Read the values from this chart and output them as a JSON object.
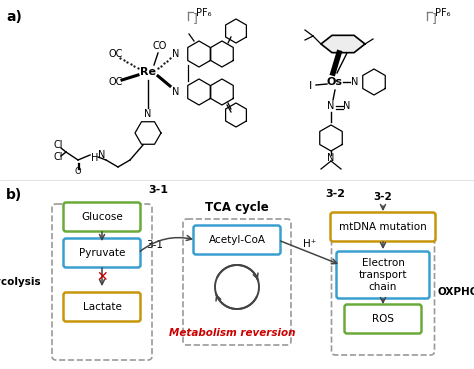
{
  "bg_color": "#ffffff",
  "label_a": "a)",
  "label_b": "b)",
  "PF6_label": "PF₆",
  "compound_31_label": "3-1",
  "compound_32_label": "3-2",
  "glycolysis_label": "Glycolysis",
  "oxphos_label": "OXPHOS",
  "tca_label": "TCA cycle",
  "metabolism_reversion_label": "Metabolism reversion",
  "glucose_label": "Glucose",
  "pyruvate_label": "Pyruvate",
  "lactate_label": "Lactate",
  "acetylcoa_label": "Acetyl-CoA",
  "mtdna_label": "mtDNA mutation",
  "electron_label": "Electron\ntransport\nchain",
  "ros_label": "ROS",
  "hplus_label": "H⁺",
  "label_31": "3-1",
  "label_32": "3-2",
  "glucose_box_color": "#6aaa3a",
  "pyruvate_box_color": "#3a9fd0",
  "lactate_box_color": "#c8960a",
  "acetylcoa_box_color": "#3a9fd0",
  "electron_box_color": "#3a9fd0",
  "ros_box_color": "#6aaa3a",
  "mtdna_box_color": "#c8960a",
  "dashed_border_color": "#999999",
  "arrow_color": "#444444",
  "red_x_color": "#cc0000",
  "metabolism_reversion_color": "#cc0000"
}
